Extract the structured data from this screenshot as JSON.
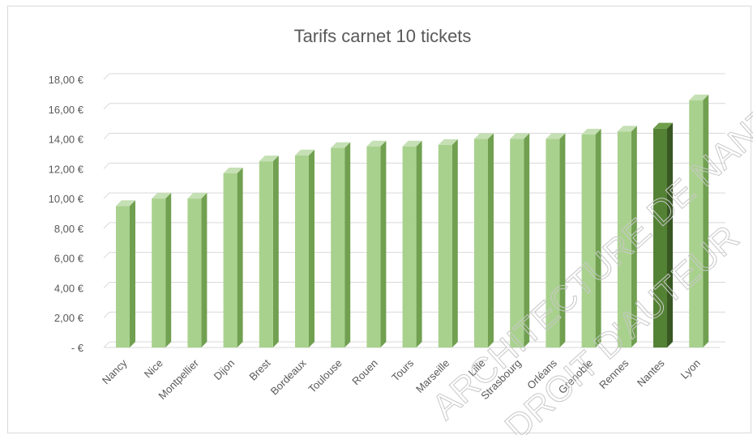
{
  "chart_data": {
    "type": "bar",
    "title": "Tarifs carnet 10 tickets",
    "categories": [
      "Nancy",
      "Nice",
      "Montpellier",
      "Dijon",
      "Brest",
      "Bordeaux",
      "Toulouse",
      "Rouen",
      "Tours",
      "Marseille",
      "Lille",
      "Strasbourg",
      "Orléans",
      "Grenoble",
      "Rennes",
      "Nantes",
      "Lyon"
    ],
    "values": [
      9.5,
      10.0,
      10.0,
      11.7,
      12.5,
      12.9,
      13.4,
      13.5,
      13.5,
      13.6,
      14.0,
      14.0,
      14.0,
      14.3,
      14.5,
      14.7,
      16.6
    ],
    "highlight_category": "Nantes",
    "ylim": [
      0,
      18
    ],
    "y_ticks": [
      "-  €",
      "2,00 €",
      "4,00 €",
      "6,00 €",
      "8,00 €",
      "10,00 €",
      "12,00 €",
      "14,00 €",
      "16,00 €",
      "18,00 €"
    ],
    "grid": true,
    "style": "3d-column",
    "colors": {
      "bar_front": "#a9d18e",
      "bar_side": "#70a050",
      "bar_top": "#c5e0b4",
      "highlight_front": "#548235",
      "highlight_side": "#385723",
      "highlight_top": "#6f9e4a",
      "grid": "#d9d9d9",
      "text": "#595959"
    }
  },
  "watermark": [
    "ARCHITECTURE DE NANTES",
    "DROIT D'AUTEUR"
  ]
}
